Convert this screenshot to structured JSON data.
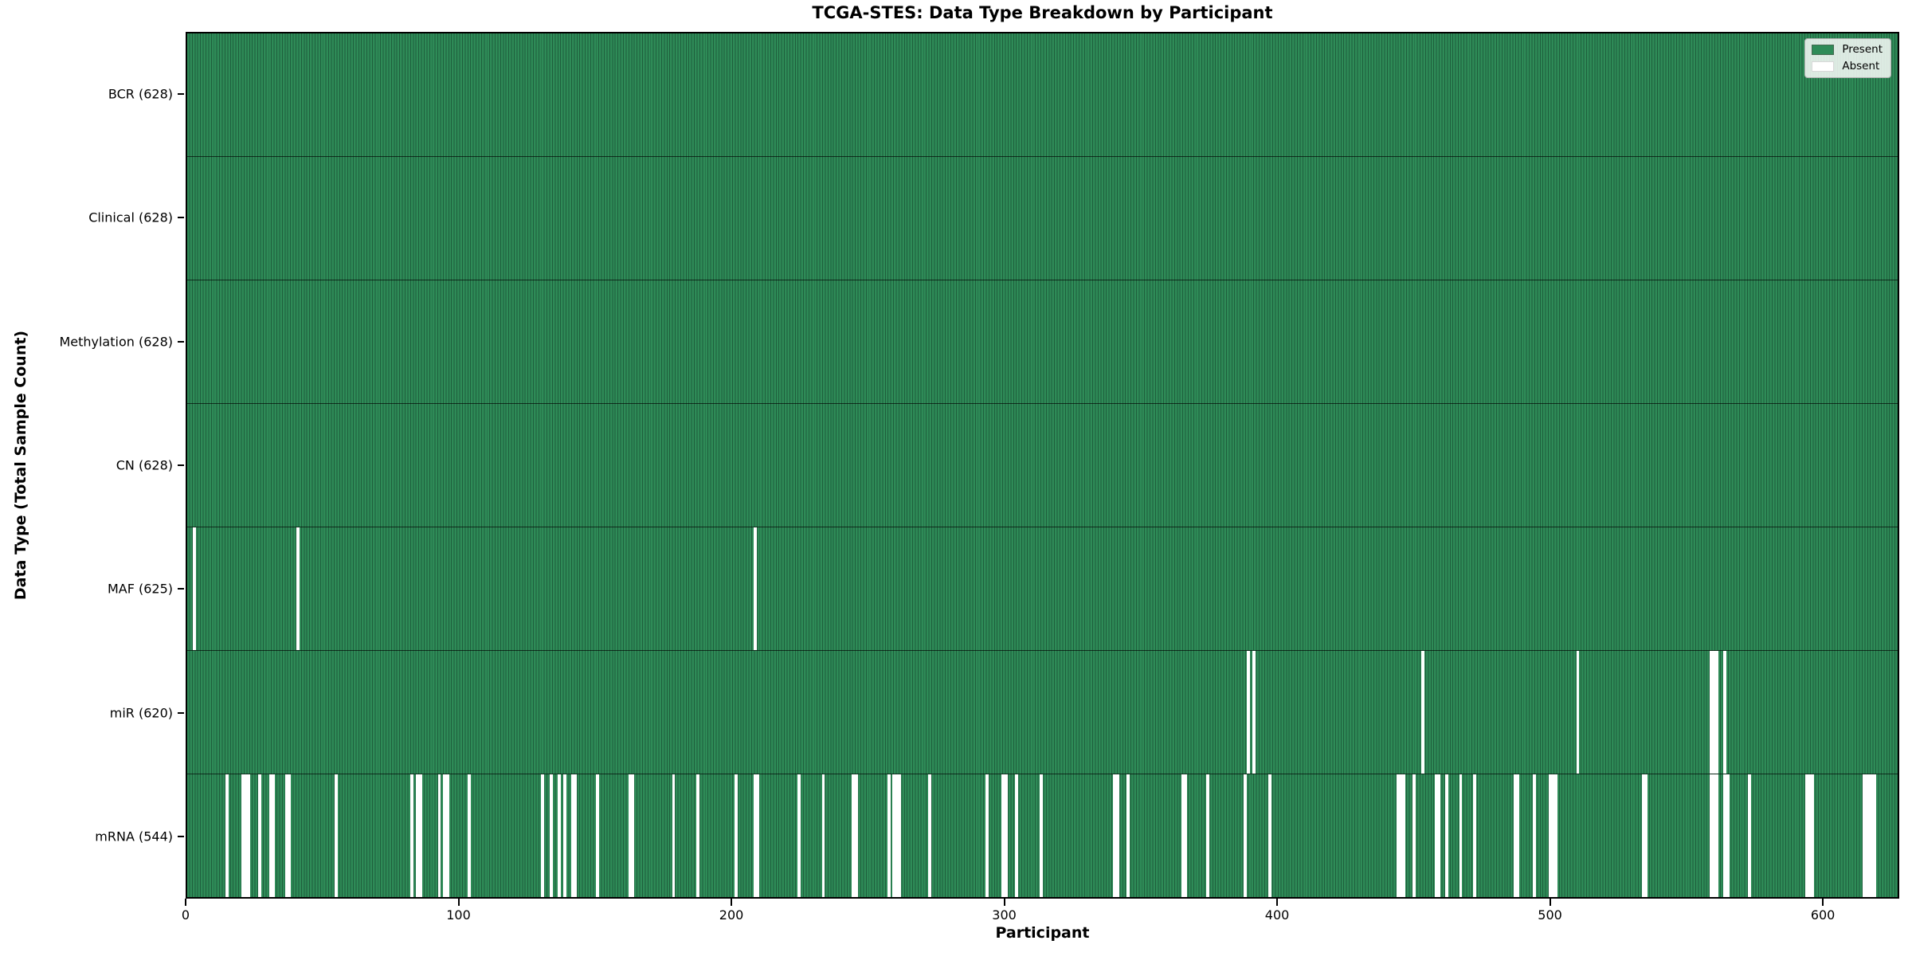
{
  "colors": {
    "present": "#2e8b57",
    "present_edge": "#1e5e3c",
    "absent": "#ffffff",
    "row_divider": "rgba(0,0,0,0.65)",
    "axis": "#000000"
  },
  "chart_data": {
    "type": "heatmap",
    "title": "TCGA-STES: Data Type Breakdown by Participant",
    "xlabel": "Participant",
    "ylabel": "Data Type (Total Sample Count)",
    "n_participants": 628,
    "x_ticks": [
      0,
      100,
      200,
      300,
      400,
      500,
      600
    ],
    "grid": false,
    "legend_position": "upper right",
    "legend": [
      {
        "label": "Present",
        "color": "#2e8b57"
      },
      {
        "label": "Absent",
        "color": "#ffffff"
      }
    ],
    "rows": [
      {
        "data_type": "BCR",
        "label": "BCR (628)",
        "present_count": 628,
        "absent_participants": []
      },
      {
        "data_type": "Clinical",
        "label": "Clinical (628)",
        "present_count": 628,
        "absent_participants": []
      },
      {
        "data_type": "Methylation",
        "label": "Methylation (628)",
        "present_count": 628,
        "absent_participants": []
      },
      {
        "data_type": "CN",
        "label": "CN (628)",
        "present_count": 628,
        "absent_participants": []
      },
      {
        "data_type": "MAF",
        "label": "MAF (625)",
        "present_count": 625,
        "absent_participants": [
          2,
          40,
          208
        ]
      },
      {
        "data_type": "miR",
        "label": "miR (620)",
        "present_count": 620,
        "absent_participants": [
          389,
          391,
          453,
          510,
          559,
          560,
          561,
          564
        ]
      },
      {
        "data_type": "mRNA",
        "label": "mRNA (544)",
        "present_count": 544,
        "absent_participants": [
          14,
          20,
          21,
          22,
          26,
          30,
          31,
          36,
          37,
          54,
          82,
          84,
          85,
          92,
          94,
          95,
          103,
          130,
          133,
          136,
          138,
          141,
          142,
          150,
          162,
          163,
          178,
          187,
          201,
          208,
          209,
          224,
          233,
          244,
          245,
          257,
          259,
          260,
          261,
          272,
          293,
          299,
          300,
          304,
          313,
          340,
          341,
          345,
          365,
          366,
          374,
          388,
          397,
          444,
          445,
          446,
          450,
          458,
          459,
          462,
          467,
          472,
          487,
          488,
          494,
          500,
          501,
          502,
          534,
          535,
          559,
          560,
          561,
          564,
          565,
          573,
          594,
          595,
          596,
          615,
          616,
          617,
          618,
          619
        ]
      }
    ]
  }
}
